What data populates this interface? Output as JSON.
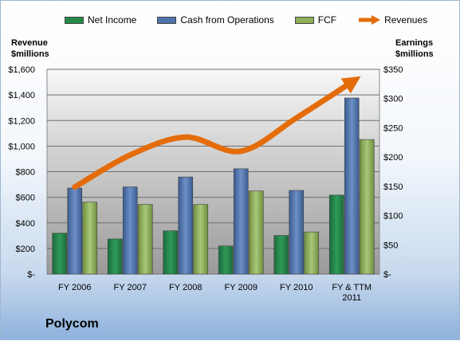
{
  "chart_data": {
    "type": "bar",
    "title": "Polycom",
    "categories": [
      "FY 2006",
      "FY 2007",
      "FY 2008",
      "FY 2009",
      "FY 2010",
      "FY & TTM 2011"
    ],
    "series": [
      {
        "name": "Net Income",
        "axis": "right",
        "color": "#238a4a",
        "values": [
          70,
          60,
          74,
          48,
          66,
          135
        ]
      },
      {
        "name": "Cash from Operations",
        "axis": "right",
        "color": "#4f73ad",
        "values": [
          147,
          149,
          166,
          180,
          143,
          301
        ]
      },
      {
        "name": "FCF",
        "axis": "right",
        "color": "#8fb05a",
        "values": [
          123,
          119,
          119,
          142,
          72,
          230
        ]
      }
    ],
    "line_series": {
      "name": "Revenues",
      "axis": "left",
      "color": "#e46c0a",
      "values": [
        680,
        930,
        1070,
        960,
        1220,
        1500
      ]
    },
    "ylabel_left": [
      "Revenue",
      "$millions"
    ],
    "ylabel_right": [
      "Earnings",
      "$millions"
    ],
    "ylim_left": [
      0,
      1600
    ],
    "ylim_right": [
      0,
      350
    ],
    "yticks_left": [
      "$-",
      "$200",
      "$400",
      "$600",
      "$800",
      "$1,000",
      "$1,200",
      "$1,400",
      "$1,600"
    ],
    "yticks_right": [
      "$-",
      "$50",
      "$100",
      "$150",
      "$200",
      "$250",
      "$300",
      "$350"
    ],
    "grid": true,
    "legend_position": "top"
  }
}
